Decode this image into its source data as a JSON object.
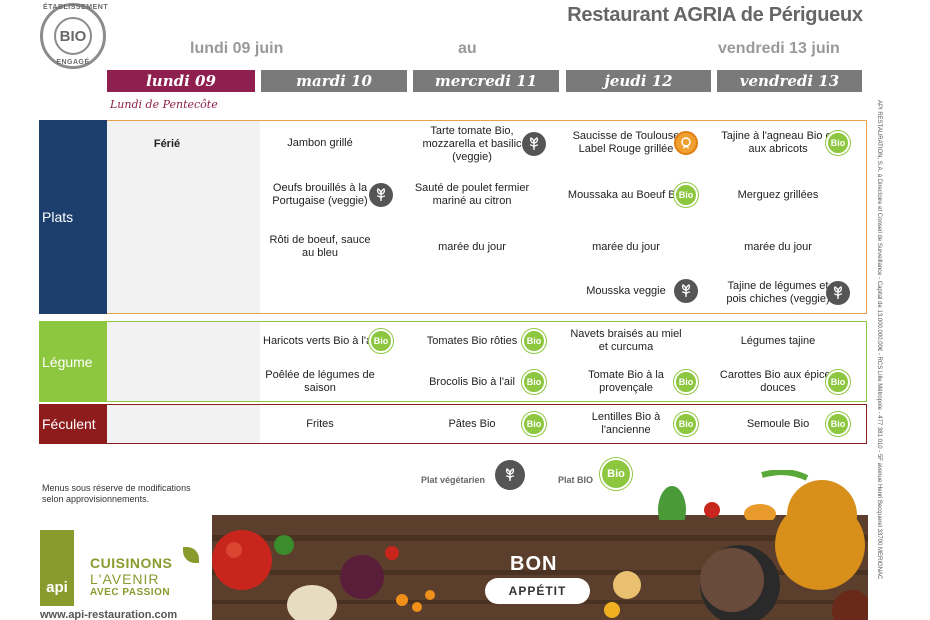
{
  "header": {
    "logo_top": "ÉTABLISSEMENT",
    "logo_center": "BIO",
    "logo_bottom": "ENGAGÉ",
    "title": "Restaurant AGRIA de Périgueux",
    "range_start": "lundi 09 juin",
    "range_mid": "au",
    "range_end": "vendredi 13 juin"
  },
  "days": [
    {
      "label": "lundi 09",
      "active": true
    },
    {
      "label": "mardi 10",
      "active": false
    },
    {
      "label": "mercredi 11",
      "active": false
    },
    {
      "label": "jeudi 12",
      "active": false
    },
    {
      "label": "vendredi 13",
      "active": false
    }
  ],
  "holiday": {
    "subtitle": "Lundi de Pentecôte",
    "label": "Férié"
  },
  "categories": {
    "plats": "Plats",
    "legume": "Légume",
    "feculent": "Féculent"
  },
  "menu": {
    "plats": [
      {
        "text": "Jambon grillé",
        "icon": ""
      },
      {
        "text": "Oeufs brouillés à la Portugaise (veggie)",
        "icon": "veg"
      },
      {
        "text": "Rôti de boeuf, sauce au bleu",
        "icon": ""
      },
      {
        "text": "Tarte tomate Bio, mozzarella et basilic (veggie)",
        "icon": "veg"
      },
      {
        "text": "Sauté de poulet fermier mariné au citron",
        "icon": ""
      },
      {
        "text": "marée du jour",
        "icon": ""
      },
      {
        "text": "Saucisse de Toulouse Label Rouge grillée",
        "icon": "label"
      },
      {
        "text": "Moussaka au Boeuf Bio",
        "icon": "bio"
      },
      {
        "text": "marée du jour",
        "icon": ""
      },
      {
        "text": "Mousska veggie",
        "icon": "veg"
      },
      {
        "text": "Tajine à l'agneau Bio et aux abricots",
        "icon": "bio"
      },
      {
        "text": "Merguez grillées",
        "icon": ""
      },
      {
        "text": "marée du jour",
        "icon": ""
      },
      {
        "text": "Tajine de légumes et pois chiches (veggie)",
        "icon": "veg"
      }
    ],
    "legume": [
      {
        "text": "Haricots verts Bio à l'ail",
        "icon": "bio"
      },
      {
        "text": "Poêlée de légumes de saison",
        "icon": ""
      },
      {
        "text": "Tomates Bio rôties",
        "icon": "bio"
      },
      {
        "text": "Brocolis Bio à l'ail",
        "icon": "bio"
      },
      {
        "text": "Navets braisés au miel et curcuma",
        "icon": ""
      },
      {
        "text": "Tomate Bio à la provençale",
        "icon": "bio"
      },
      {
        "text": "Légumes tajine",
        "icon": ""
      },
      {
        "text": "Carottes Bio aux épices douces",
        "icon": "bio"
      }
    ],
    "feculent": [
      {
        "text": "Frites",
        "icon": ""
      },
      {
        "text": "Pâtes Bio",
        "icon": "bio"
      },
      {
        "text": "Lentilles Bio à l'ancienne",
        "icon": "bio"
      },
      {
        "text": "Semoule Bio",
        "icon": "bio"
      }
    ]
  },
  "legend": {
    "note": "Menus sous réserve de modifications selon approvisionnements.",
    "veg_label": "Plat végétarien",
    "bio_label": "Plat BIO",
    "bio_badge": "Bio"
  },
  "footer": {
    "api_logo": "api",
    "slogan_1": "CUISINONS",
    "slogan_2": "L'AVENIR",
    "slogan_3": "AVEC PASSION",
    "website": "www.api-restauration.com",
    "bon": "BON",
    "appetit": "APPÉTIT",
    "legal": "API RESTAURATION, S.A. à Directoire et Conseil de Surveillance - Capital de 13.000.000,00€ - RCS Lille Métropole - 477 381 010 - 5F avenue Henri Becquerel 33700 MERIGNAC"
  },
  "colors": {
    "active_day": "#8e1f4f",
    "inactive_day": "#7a7a7a",
    "plats": "#1d3f6e",
    "legume": "#8dc63f",
    "feculent": "#8e1c1c",
    "bio": "#8dc63f"
  }
}
